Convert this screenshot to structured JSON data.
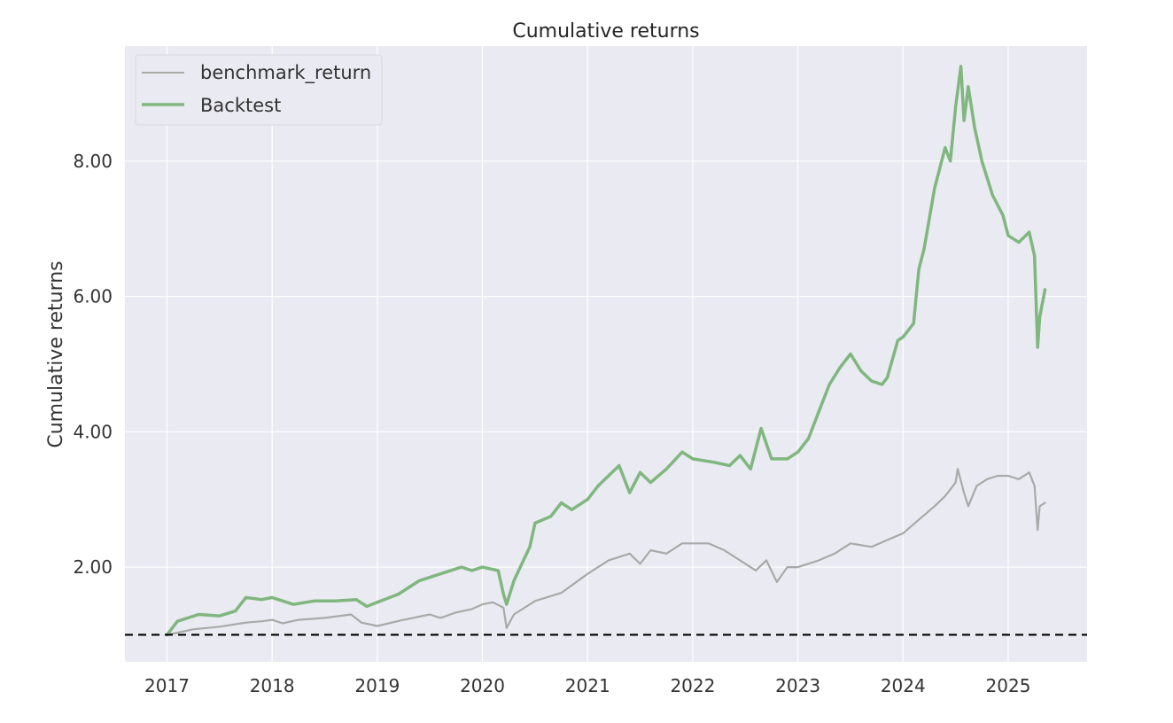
{
  "chart_data": {
    "type": "line",
    "title": "Cumulative returns",
    "xlabel": "",
    "ylabel": "Cumulative returns",
    "xlim": [
      2016.6,
      2025.75
    ],
    "ylim": [
      0.6,
      9.7
    ],
    "x_ticks": [
      2017,
      2018,
      2019,
      2020,
      2021,
      2022,
      2023,
      2024,
      2025
    ],
    "x_tick_labels": [
      "2017",
      "2018",
      "2019",
      "2020",
      "2021",
      "2022",
      "2023",
      "2024",
      "2025"
    ],
    "y_ticks": [
      2,
      4,
      6,
      8
    ],
    "y_tick_labels": [
      "2.00",
      "4.00",
      "6.00",
      "8.00"
    ],
    "grid": true,
    "legend_position": "top-left",
    "background_color": "#eaeaf2",
    "reference_line": {
      "y": 1.0,
      "style": "dashed",
      "color": "#000000"
    },
    "series": [
      {
        "name": "benchmark_return",
        "color": "#a9a9a9",
        "points": [
          [
            2017.0,
            1.0
          ],
          [
            2017.25,
            1.08
          ],
          [
            2017.5,
            1.12
          ],
          [
            2017.75,
            1.18
          ],
          [
            2017.9,
            1.2
          ],
          [
            2018.0,
            1.22
          ],
          [
            2018.1,
            1.17
          ],
          [
            2018.25,
            1.22
          ],
          [
            2018.5,
            1.25
          ],
          [
            2018.75,
            1.3
          ],
          [
            2018.85,
            1.18
          ],
          [
            2019.0,
            1.13
          ],
          [
            2019.25,
            1.22
          ],
          [
            2019.5,
            1.3
          ],
          [
            2019.6,
            1.25
          ],
          [
            2019.75,
            1.33
          ],
          [
            2019.9,
            1.38
          ],
          [
            2020.0,
            1.45
          ],
          [
            2020.1,
            1.48
          ],
          [
            2020.2,
            1.4
          ],
          [
            2020.23,
            1.1
          ],
          [
            2020.3,
            1.3
          ],
          [
            2020.5,
            1.5
          ],
          [
            2020.75,
            1.62
          ],
          [
            2021.0,
            1.9
          ],
          [
            2021.2,
            2.1
          ],
          [
            2021.4,
            2.2
          ],
          [
            2021.5,
            2.05
          ],
          [
            2021.6,
            2.25
          ],
          [
            2021.75,
            2.2
          ],
          [
            2021.9,
            2.35
          ],
          [
            2022.0,
            2.35
          ],
          [
            2022.15,
            2.35
          ],
          [
            2022.3,
            2.25
          ],
          [
            2022.5,
            2.05
          ],
          [
            2022.6,
            1.95
          ],
          [
            2022.7,
            2.1
          ],
          [
            2022.8,
            1.78
          ],
          [
            2022.9,
            2.0
          ],
          [
            2023.0,
            2.0
          ],
          [
            2023.2,
            2.1
          ],
          [
            2023.35,
            2.2
          ],
          [
            2023.5,
            2.35
          ],
          [
            2023.7,
            2.3
          ],
          [
            2023.85,
            2.4
          ],
          [
            2024.0,
            2.5
          ],
          [
            2024.15,
            2.7
          ],
          [
            2024.3,
            2.9
          ],
          [
            2024.4,
            3.05
          ],
          [
            2024.5,
            3.25
          ],
          [
            2024.52,
            3.45
          ],
          [
            2024.58,
            3.1
          ],
          [
            2024.62,
            2.9
          ],
          [
            2024.7,
            3.2
          ],
          [
            2024.8,
            3.3
          ],
          [
            2024.9,
            3.35
          ],
          [
            2025.0,
            3.35
          ],
          [
            2025.1,
            3.3
          ],
          [
            2025.2,
            3.4
          ],
          [
            2025.25,
            3.2
          ],
          [
            2025.28,
            2.55
          ],
          [
            2025.3,
            2.9
          ],
          [
            2025.35,
            2.95
          ]
        ]
      },
      {
        "name": "Backtest",
        "color": "#7fb77e",
        "points": [
          [
            2017.0,
            1.0
          ],
          [
            2017.1,
            1.2
          ],
          [
            2017.3,
            1.3
          ],
          [
            2017.5,
            1.28
          ],
          [
            2017.65,
            1.35
          ],
          [
            2017.75,
            1.55
          ],
          [
            2017.9,
            1.52
          ],
          [
            2018.0,
            1.55
          ],
          [
            2018.2,
            1.45
          ],
          [
            2018.4,
            1.5
          ],
          [
            2018.6,
            1.5
          ],
          [
            2018.8,
            1.52
          ],
          [
            2018.9,
            1.42
          ],
          [
            2019.0,
            1.48
          ],
          [
            2019.2,
            1.6
          ],
          [
            2019.4,
            1.8
          ],
          [
            2019.6,
            1.9
          ],
          [
            2019.8,
            2.0
          ],
          [
            2019.9,
            1.95
          ],
          [
            2020.0,
            2.0
          ],
          [
            2020.15,
            1.95
          ],
          [
            2020.2,
            1.6
          ],
          [
            2020.23,
            1.45
          ],
          [
            2020.3,
            1.8
          ],
          [
            2020.45,
            2.3
          ],
          [
            2020.5,
            2.65
          ],
          [
            2020.65,
            2.75
          ],
          [
            2020.75,
            2.95
          ],
          [
            2020.85,
            2.85
          ],
          [
            2021.0,
            3.0
          ],
          [
            2021.1,
            3.2
          ],
          [
            2021.3,
            3.5
          ],
          [
            2021.4,
            3.1
          ],
          [
            2021.5,
            3.4
          ],
          [
            2021.6,
            3.25
          ],
          [
            2021.75,
            3.45
          ],
          [
            2021.9,
            3.7
          ],
          [
            2022.0,
            3.6
          ],
          [
            2022.2,
            3.55
          ],
          [
            2022.35,
            3.5
          ],
          [
            2022.45,
            3.65
          ],
          [
            2022.55,
            3.45
          ],
          [
            2022.65,
            4.05
          ],
          [
            2022.75,
            3.6
          ],
          [
            2022.9,
            3.6
          ],
          [
            2023.0,
            3.7
          ],
          [
            2023.1,
            3.9
          ],
          [
            2023.2,
            4.3
          ],
          [
            2023.3,
            4.7
          ],
          [
            2023.4,
            4.95
          ],
          [
            2023.5,
            5.15
          ],
          [
            2023.6,
            4.9
          ],
          [
            2023.7,
            4.75
          ],
          [
            2023.8,
            4.7
          ],
          [
            2023.85,
            4.8
          ],
          [
            2023.95,
            5.35
          ],
          [
            2024.0,
            5.4
          ],
          [
            2024.1,
            5.6
          ],
          [
            2024.15,
            6.4
          ],
          [
            2024.2,
            6.7
          ],
          [
            2024.3,
            7.6
          ],
          [
            2024.4,
            8.2
          ],
          [
            2024.45,
            8.0
          ],
          [
            2024.5,
            8.8
          ],
          [
            2024.55,
            9.4
          ],
          [
            2024.58,
            8.6
          ],
          [
            2024.62,
            9.1
          ],
          [
            2024.68,
            8.5
          ],
          [
            2024.75,
            8.0
          ],
          [
            2024.85,
            7.5
          ],
          [
            2024.95,
            7.2
          ],
          [
            2025.0,
            6.9
          ],
          [
            2025.1,
            6.8
          ],
          [
            2025.2,
            6.95
          ],
          [
            2025.25,
            6.6
          ],
          [
            2025.28,
            5.25
          ],
          [
            2025.3,
            5.7
          ],
          [
            2025.35,
            6.1
          ]
        ]
      }
    ]
  }
}
